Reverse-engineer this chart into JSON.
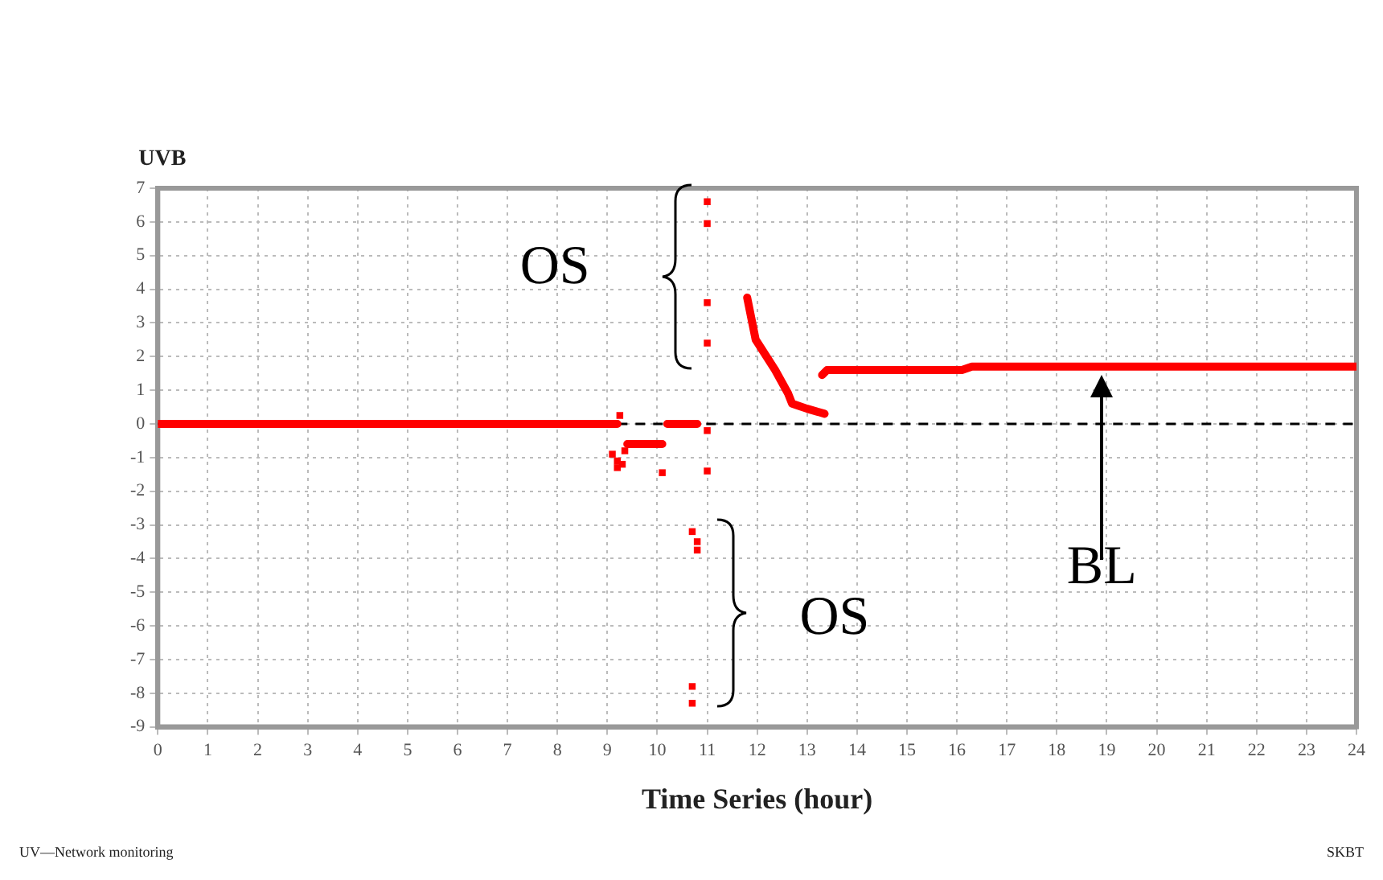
{
  "chart_data": {
    "type": "scatter",
    "xlabel": "Time Series (hour)",
    "ylabel": "UVB",
    "xlim": [
      0,
      24
    ],
    "xticks": [
      0,
      1,
      2,
      3,
      4,
      5,
      6,
      7,
      8,
      9,
      10,
      11,
      12,
      13,
      14,
      15,
      16,
      17,
      18,
      19,
      20,
      21,
      22,
      23,
      24
    ],
    "ylim": [
      -9,
      7
    ],
    "yticks": [
      -9,
      -8,
      -7,
      -6,
      -5,
      -4,
      -3,
      -2,
      -1,
      0,
      1,
      2,
      3,
      4,
      5,
      6,
      7
    ],
    "grid": true,
    "marker": "square",
    "series": [
      {
        "type": "line",
        "color": "#ff0000",
        "marker": "none",
        "x": [
          0,
          9.2,
          9.3,
          9.4,
          10.1,
          10.15,
          10.2,
          10.8,
          11.3,
          11.8,
          11.97,
          12.36,
          12.62,
          12.7,
          13.0,
          13.35,
          13.32,
          13.3,
          13.4,
          16.1,
          16.3,
          24
        ],
        "values": [
          0,
          0,
          null,
          -0.6,
          -0.6,
          null,
          0,
          0,
          null,
          3.75,
          2.5,
          1.6,
          0.9,
          0.6,
          0.45,
          0.3,
          null,
          1.45,
          1.6,
          1.6,
          1.7,
          1.7
        ]
      },
      {
        "type": "scatter",
        "color": "#ff0000",
        "x": [
          9.25,
          9.1,
          9.2,
          9.3,
          9.2,
          9.35,
          10.1,
          11.0,
          11.0,
          11.0,
          11.0,
          11.0,
          11.0,
          10.7,
          10.8,
          10.8,
          10.7,
          10.7
        ],
        "values": [
          0.25,
          -0.9,
          -1.1,
          -1.2,
          -1.3,
          -0.8,
          -1.45,
          6.6,
          5.95,
          3.6,
          2.4,
          -0.2,
          -1.4,
          -3.2,
          -3.5,
          -3.75,
          -7.8,
          -8.3
        ]
      }
    ],
    "ref_lines": [
      {
        "axis": "y",
        "value": 0,
        "color": "#000000",
        "line_style": "dashed"
      }
    ],
    "annotations": [
      "OS",
      "OS",
      "BL",
      "UV—Network monitoring",
      "SKBT"
    ]
  }
}
